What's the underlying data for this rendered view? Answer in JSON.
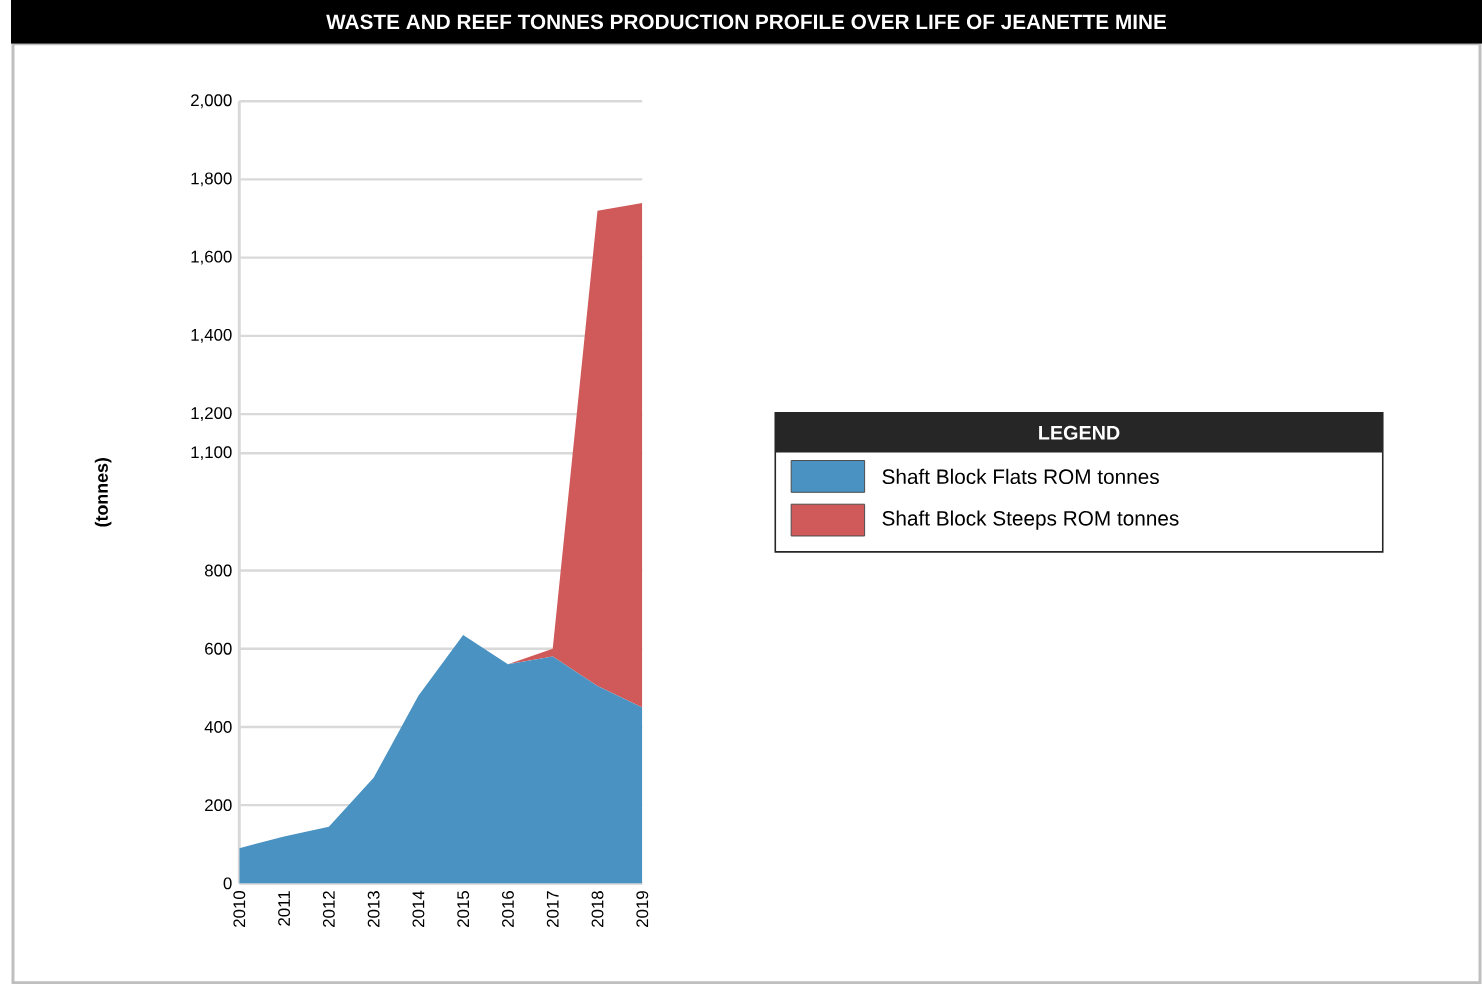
{
  "chart_data": {
    "type": "area",
    "title": "WASTE AND REEF TONNES PRODUCTION PROFILE OVER LIFE OF JEANETTE MINE",
    "ylabel": "(tonnes)",
    "legend_title": "LEGEND",
    "legend": "right",
    "stacked": true,
    "grid": "y",
    "categories": [
      "2010",
      "2011",
      "2012",
      "2013",
      "2014",
      "2015",
      "2016",
      "2017",
      "2018",
      "2019"
    ],
    "ylim": [
      0,
      2000
    ],
    "yticks": [
      0,
      200,
      400,
      600,
      800,
      {
        "value": 1100,
        "label": "1,100"
      },
      {
        "value": 1200,
        "label": "1,200"
      },
      {
        "value": 1400,
        "label": "1,400"
      },
      {
        "value": 1600,
        "label": "1,600"
      },
      {
        "value": 1800,
        "label": "1,800"
      },
      {
        "value": 2000,
        "label": "2,000"
      }
    ],
    "series": [
      {
        "name": "Shaft Block Flats ROM tonnes",
        "color": "#4a92c2",
        "values": [
          90,
          120,
          145,
          270,
          480,
          635,
          560,
          580,
          505,
          450
        ]
      },
      {
        "name": "Shaft Block Steeps ROM tonnes",
        "color": "#d05a5a",
        "values": [
          0,
          0,
          0,
          0,
          0,
          0,
          0,
          20,
          1215,
          1290
        ]
      }
    ]
  }
}
